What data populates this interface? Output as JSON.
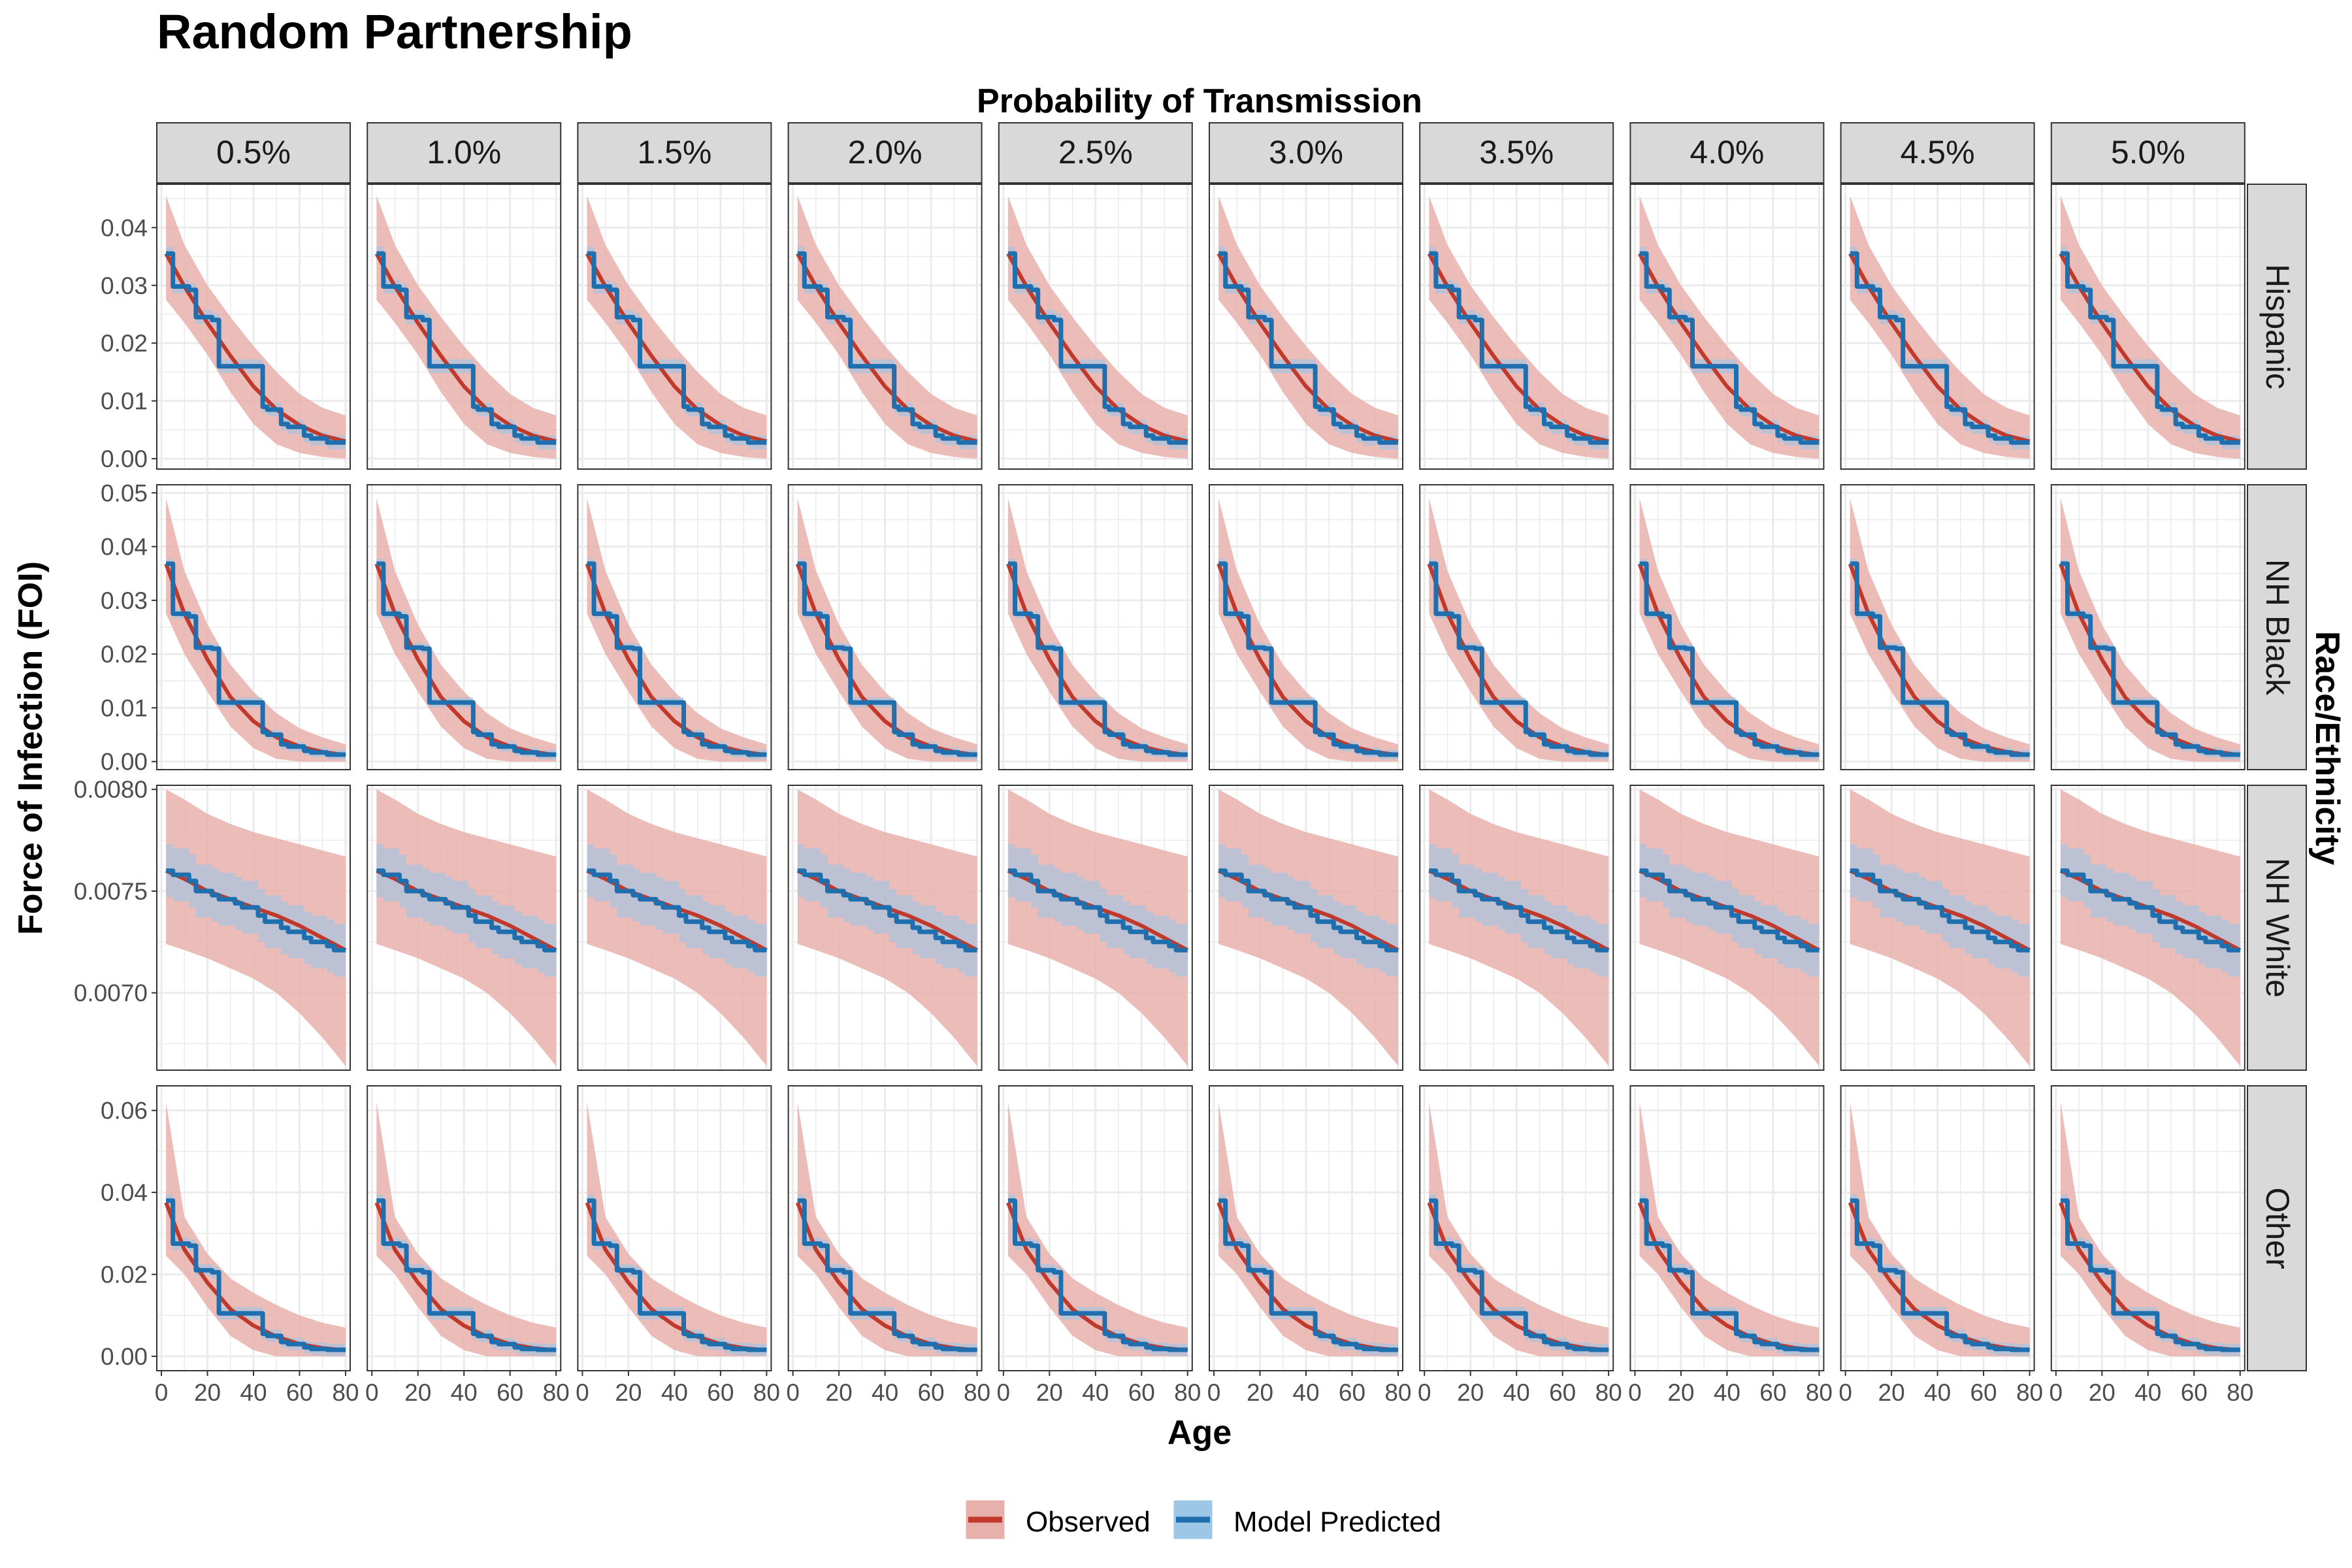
{
  "title": "Random Partnership",
  "col_strip_title": "Probability of Transmission",
  "row_strip_title": "Race/Ethnicity",
  "xlabel": "Age",
  "ylabel": "Force of Infection (FOI)",
  "legend": {
    "observed_label": "Observed",
    "model_label": "Model Predicted",
    "observed_color": "#c0392b",
    "observed_fill": "#e8b0ab",
    "model_color": "#1f6fae",
    "model_fill": "#9cc7e6"
  },
  "chart_data": {
    "type": "line",
    "facet_cols": [
      "0.5%",
      "1.0%",
      "1.5%",
      "2.0%",
      "2.5%",
      "3.0%",
      "3.5%",
      "4.0%",
      "4.5%",
      "5.0%"
    ],
    "x_ticks": [
      0,
      20,
      40,
      60,
      80
    ],
    "xlim": [
      -2,
      82
    ],
    "grid": true,
    "legend_position": "bottom",
    "note": "Observed curve and band are identical across all transmission-probability columns; model predicted step function also identical.",
    "rows": [
      {
        "name": "Hispanic",
        "ylim": [
          -0.0018,
          0.0475
        ],
        "y_ticks": [
          0.0,
          0.01,
          0.02,
          0.03,
          0.04
        ],
        "y_tick_labels": [
          "0.00",
          "0.01",
          "0.02",
          "0.03",
          "0.04"
        ],
        "observed": {
          "x": [
            2,
            10,
            20,
            30,
            40,
            50,
            60,
            70,
            80
          ],
          "y": [
            0.0355,
            0.0298,
            0.0235,
            0.0178,
            0.0125,
            0.0085,
            0.0058,
            0.004,
            0.003
          ],
          "lo": [
            0.0275,
            0.0235,
            0.018,
            0.0115,
            0.006,
            0.0025,
            0.001,
            0.0003,
            0.0
          ],
          "hi": [
            0.0455,
            0.037,
            0.03,
            0.0245,
            0.0195,
            0.015,
            0.0112,
            0.0088,
            0.0075
          ]
        },
        "model": {
          "x": [
            2,
            5,
            5,
            12,
            12,
            15,
            15,
            22,
            22,
            25,
            25,
            44,
            44,
            46,
            46,
            52,
            52,
            55,
            55,
            62,
            62,
            65,
            65,
            72,
            72,
            75,
            75,
            80
          ],
          "y": [
            0.0355,
            0.0355,
            0.0298,
            0.0298,
            0.0292,
            0.0292,
            0.0245,
            0.0245,
            0.024,
            0.024,
            0.016,
            0.016,
            0.009,
            0.009,
            0.0085,
            0.0085,
            0.006,
            0.006,
            0.0055,
            0.0055,
            0.004,
            0.004,
            0.0035,
            0.0035,
            0.0028,
            0.0028,
            0.0028,
            0.0028
          ],
          "band": 0.0012
        }
      },
      {
        "name": "NH Black",
        "ylim": [
          -0.0015,
          0.0515
        ],
        "y_ticks": [
          0.0,
          0.01,
          0.02,
          0.03,
          0.04,
          0.05
        ],
        "y_tick_labels": [
          "0.00",
          "0.01",
          "0.02",
          "0.03",
          "0.04",
          "0.05"
        ],
        "observed": {
          "x": [
            2,
            10,
            20,
            30,
            40,
            50,
            60,
            70,
            80
          ],
          "y": [
            0.0368,
            0.0275,
            0.019,
            0.012,
            0.0075,
            0.0045,
            0.0028,
            0.0018,
            0.0012
          ],
          "lo": [
            0.0275,
            0.02,
            0.013,
            0.0065,
            0.0025,
            0.0005,
            0.0,
            0.0,
            0.0
          ],
          "hi": [
            0.049,
            0.0355,
            0.0255,
            0.018,
            0.013,
            0.009,
            0.0062,
            0.0045,
            0.0032
          ]
        },
        "model": {
          "x": [
            2,
            5,
            5,
            12,
            12,
            15,
            15,
            22,
            22,
            25,
            25,
            44,
            44,
            46,
            46,
            52,
            52,
            55,
            55,
            62,
            62,
            65,
            65,
            72,
            72,
            80
          ],
          "y": [
            0.0368,
            0.0368,
            0.0275,
            0.0275,
            0.027,
            0.027,
            0.0212,
            0.0212,
            0.021,
            0.021,
            0.011,
            0.011,
            0.0055,
            0.0055,
            0.005,
            0.005,
            0.0032,
            0.0032,
            0.0028,
            0.0028,
            0.002,
            0.002,
            0.0017,
            0.0017,
            0.0013,
            0.0013
          ],
          "band": 0.0009
        }
      },
      {
        "name": "NH White",
        "ylim": [
          0.00662,
          0.00802
        ],
        "y_ticks": [
          0.007,
          0.0075,
          0.008
        ],
        "y_tick_labels": [
          "0.0070",
          "0.0075",
          "0.0080"
        ],
        "observed": {
          "x": [
            2,
            10,
            20,
            30,
            40,
            50,
            60,
            70,
            80
          ],
          "y": [
            0.0076,
            0.00756,
            0.0075,
            0.00746,
            0.00742,
            0.00738,
            0.00733,
            0.00727,
            0.00721
          ],
          "lo": [
            0.00724,
            0.00721,
            0.00717,
            0.00712,
            0.00707,
            0.007,
            0.0069,
            0.00678,
            0.00664
          ],
          "hi": [
            0.008,
            0.00795,
            0.00788,
            0.00783,
            0.00779,
            0.00776,
            0.00773,
            0.0077,
            0.00767
          ]
        },
        "model": {
          "x": [
            2,
            5,
            5,
            12,
            12,
            15,
            15,
            22,
            22,
            25,
            25,
            32,
            32,
            35,
            35,
            42,
            42,
            45,
            45,
            52,
            52,
            55,
            55,
            62,
            62,
            65,
            65,
            72,
            72,
            75,
            75,
            80
          ],
          "y": [
            0.0076,
            0.0076,
            0.00758,
            0.00758,
            0.00755,
            0.00755,
            0.0075,
            0.0075,
            0.00748,
            0.00748,
            0.00746,
            0.00746,
            0.00744,
            0.00744,
            0.00742,
            0.00742,
            0.00738,
            0.00738,
            0.00735,
            0.00735,
            0.00732,
            0.00732,
            0.0073,
            0.0073,
            0.00727,
            0.00727,
            0.00725,
            0.00725,
            0.00723,
            0.00723,
            0.00721,
            0.00721
          ],
          "band": 0.00013
        }
      },
      {
        "name": "Other",
        "ylim": [
          -0.0035,
          0.066
        ],
        "y_ticks": [
          0.0,
          0.02,
          0.04,
          0.06
        ],
        "y_tick_labels": [
          "0.00",
          "0.02",
          "0.04",
          "0.06"
        ],
        "observed": {
          "x": [
            2,
            10,
            20,
            30,
            40,
            50,
            60,
            70,
            80
          ],
          "y": [
            0.0375,
            0.026,
            0.018,
            0.0115,
            0.0075,
            0.0048,
            0.003,
            0.002,
            0.0015
          ],
          "lo": [
            0.0245,
            0.02,
            0.012,
            0.005,
            0.0015,
            0.0,
            0.0,
            0.0,
            0.0
          ],
          "hi": [
            0.062,
            0.034,
            0.025,
            0.019,
            0.0155,
            0.0125,
            0.01,
            0.0082,
            0.007
          ]
        },
        "model": {
          "x": [
            2,
            5,
            5,
            12,
            12,
            15,
            15,
            22,
            22,
            25,
            25,
            44,
            44,
            46,
            46,
            52,
            52,
            55,
            55,
            62,
            62,
            65,
            65,
            72,
            72,
            80
          ],
          "y": [
            0.038,
            0.038,
            0.0275,
            0.0275,
            0.027,
            0.027,
            0.021,
            0.021,
            0.0205,
            0.0205,
            0.0105,
            0.0105,
            0.0055,
            0.0055,
            0.005,
            0.005,
            0.0035,
            0.0035,
            0.003,
            0.003,
            0.0022,
            0.0022,
            0.0018,
            0.0018,
            0.0016,
            0.0016
          ],
          "band": 0.0015
        }
      }
    ]
  }
}
